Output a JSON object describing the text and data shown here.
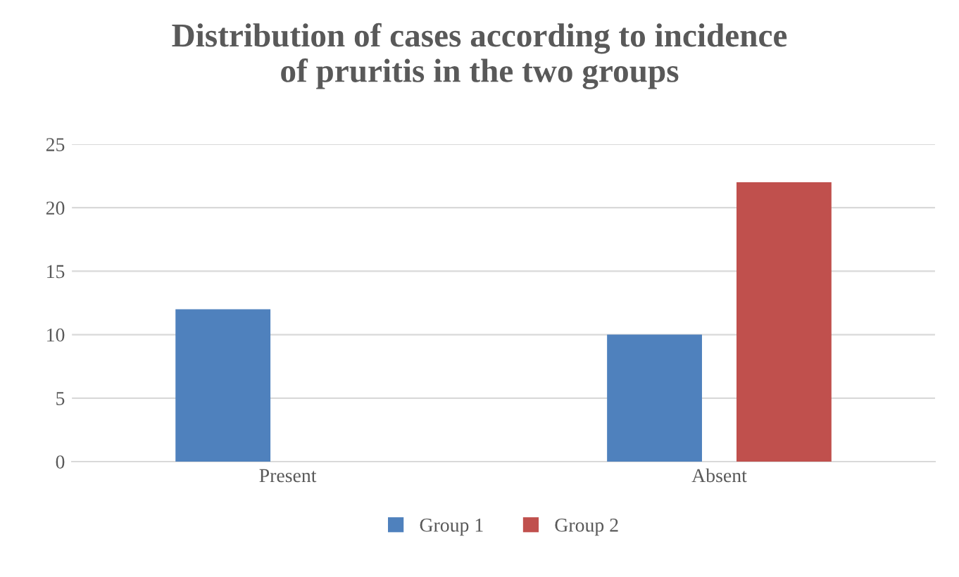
{
  "chart_data": {
    "type": "bar",
    "title": "Distribution of cases according to incidence\nof pruritis in the two groups",
    "categories": [
      "Present",
      "Absent"
    ],
    "series": [
      {
        "name": "Group 1",
        "color": "#4f81bd",
        "values": [
          12,
          10
        ]
      },
      {
        "name": "Group 2",
        "color": "#c0504d",
        "values": [
          0,
          22
        ]
      }
    ],
    "ylim": [
      0,
      25
    ],
    "yticks": [
      0,
      5,
      10,
      15,
      20,
      25
    ],
    "grid": "y",
    "legend": "bottom"
  }
}
